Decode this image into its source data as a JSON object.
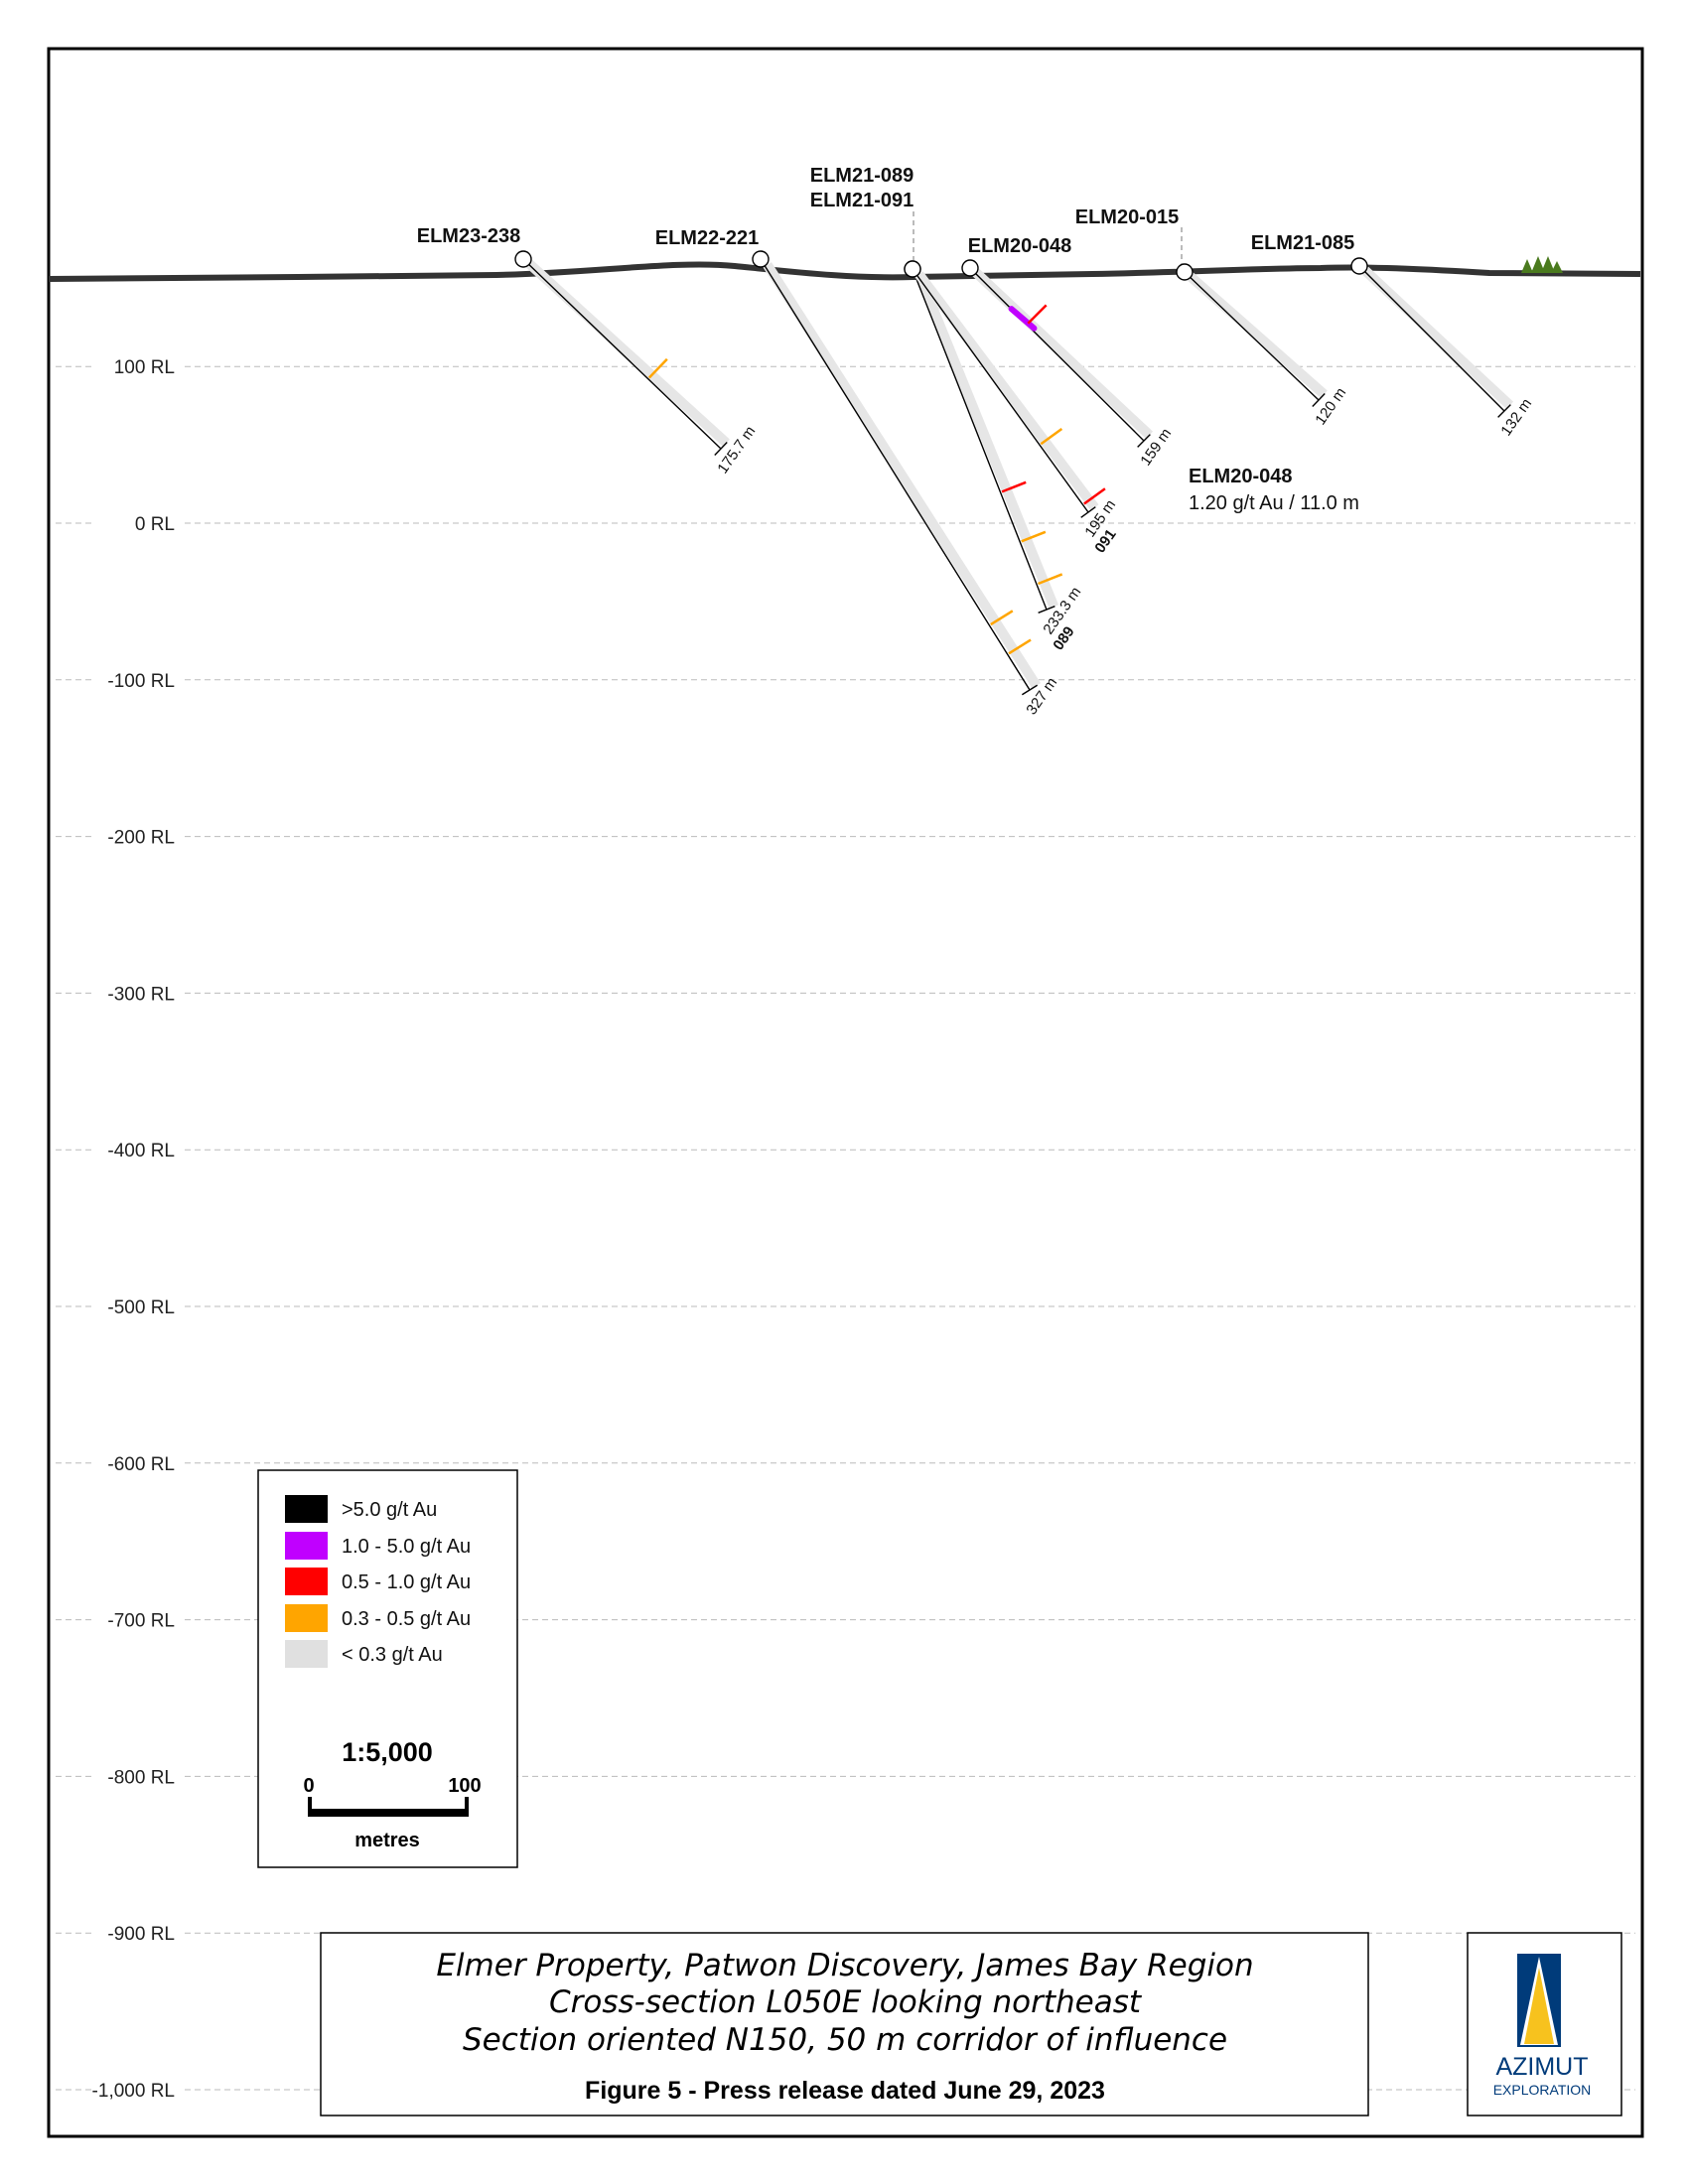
{
  "section": {
    "rl_labels": [
      "100 RL",
      "0 RL",
      "-100 RL",
      "-200 RL",
      "-300 RL",
      "-400 RL",
      "-500 RL",
      "-600 RL",
      "-700 RL",
      "-800 RL",
      "-900 RL",
      "-1,000 RL"
    ],
    "rl_values": [
      100,
      0,
      -100,
      -200,
      -300,
      -400,
      -500,
      -600,
      -700,
      -800,
      -900,
      -1000
    ]
  },
  "holes": [
    {
      "id": "ELM23-238",
      "label": "ELM23-238",
      "end_label": "175.7 m",
      "end_sub": "",
      "length_m": 175.7,
      "intercepts": [
        {
          "depth_m": 111,
          "class": "0.3-0.5"
        }
      ]
    },
    {
      "id": "ELM22-221",
      "label": "ELM22-221",
      "end_label": "327 m",
      "end_sub": "",
      "length_m": 327,
      "intercepts": [
        {
          "depth_m": 278,
          "class": "0.3-0.5"
        },
        {
          "depth_m": 300,
          "class": "0.3-0.5"
        }
      ]
    },
    {
      "id": "ELM21-089",
      "label": "ELM21-089",
      "end_label": "233.3 m",
      "end_sub": "089",
      "length_m": 233.3,
      "intercepts": [
        {
          "depth_m": 153,
          "class": "0.5-1.0"
        },
        {
          "depth_m": 187,
          "class": "0.3-0.5"
        },
        {
          "depth_m": 216,
          "class": "0.3-0.5"
        }
      ]
    },
    {
      "id": "ELM21-091",
      "label": "ELM21-091",
      "end_label": "195 m",
      "end_sub": "091",
      "length_m": 195,
      "intercepts": [
        {
          "depth_m": 141,
          "class": "0.3-0.5"
        },
        {
          "depth_m": 189,
          "class": "0.5-1.0"
        }
      ]
    },
    {
      "id": "ELM20-048",
      "label": "ELM20-048",
      "end_label": "159 m",
      "end_sub": "",
      "length_m": 159,
      "intercepts": [
        {
          "depth_m": 57,
          "class": "1.0-5.0"
        },
        {
          "depth_m": 52,
          "class": "0.5-1.0"
        }
      ]
    },
    {
      "id": "ELM20-015",
      "label": "ELM20-015",
      "end_label": "120 m",
      "end_sub": "",
      "length_m": 120,
      "intercepts": []
    },
    {
      "id": "ELM21-085",
      "label": "ELM21-085",
      "end_label": "132 m",
      "end_sub": "",
      "length_m": 132,
      "intercepts": []
    }
  ],
  "annotation": {
    "hole": "ELM20-048",
    "value": "1.20 g/t Au / 11.0 m"
  },
  "legend": {
    "items": [
      {
        "label": ">5.0 g/t Au",
        "class": ">5.0",
        "color": "#000000"
      },
      {
        "label": "1.0 - 5.0 g/t Au",
        "class": "1.0-5.0",
        "color": "#C000FF"
      },
      {
        "label": "0.5 - 1.0 g/t Au",
        "class": "0.5-1.0",
        "color": "#FF0000"
      },
      {
        "label": "0.3 - 0.5 g/t Au",
        "class": "0.3-0.5",
        "color": "#FFA500"
      },
      {
        "label": "< 0.3 g/t Au",
        "class": "<0.3",
        "color": "#E0E0E0"
      }
    ],
    "scale": "1:5,000",
    "scale_min": "0",
    "scale_max": "100",
    "scale_unit": "metres"
  },
  "title": {
    "line1": "Elmer Property, Patwon Discovery, James Bay Region",
    "line2": "Cross-section L050E looking northeast",
    "line3": "Section oriented N150, 50 m corridor of influence",
    "figure": "Figure 5 - Press release dated June 29, 2023"
  },
  "logo": {
    "name": "AZIMUT",
    "sub": "EXPLORATION",
    "colors": {
      "blue": "#003B7A",
      "yellow": "#F7C21E"
    }
  }
}
